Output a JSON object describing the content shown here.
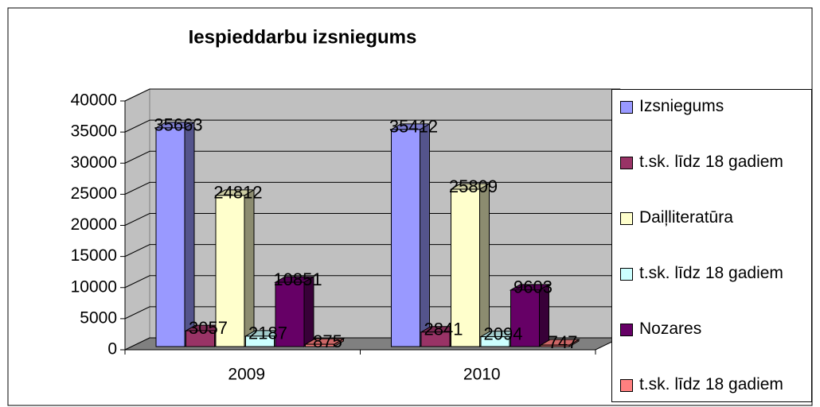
{
  "chart_data": {
    "type": "bar3d",
    "title": "Iespieddarbu izsniegums",
    "categories": [
      "2009",
      "2010"
    ],
    "series": [
      {
        "name": "Izsniegums",
        "color": "#9999ff",
        "values": [
          35663,
          35412
        ]
      },
      {
        "name": "t.sk. līdz 18 gadiem",
        "color": "#993366",
        "values": [
          3057,
          2841
        ]
      },
      {
        "name": "Daiļliteratūra",
        "color": "#ffffcc",
        "values": [
          24812,
          25809
        ]
      },
      {
        "name": "t.sk. līdz 18 gadiem",
        "color": "#ccffff",
        "values": [
          2187,
          2094
        ]
      },
      {
        "name": "Nozares",
        "color": "#660066",
        "values": [
          10851,
          9603
        ]
      },
      {
        "name": "t.sk. līdz 18 gadiem",
        "color": "#ff8080",
        "values": [
          875,
          747
        ]
      }
    ],
    "ylim": [
      0,
      40000
    ],
    "yticks": [
      0,
      5000,
      10000,
      15000,
      20000,
      25000,
      30000,
      35000,
      40000
    ],
    "grid": true,
    "legend": "right"
  }
}
